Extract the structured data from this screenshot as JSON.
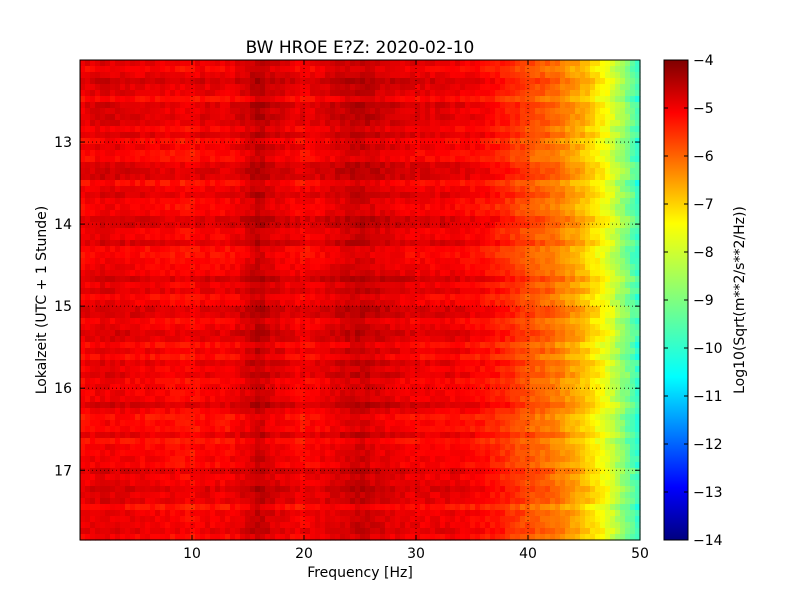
{
  "chart_data": {
    "type": "heatmap",
    "title": "BW HROE E?Z: 2020-02-10",
    "xlabel": "Frequency [Hz]",
    "ylabel": "Lokalzeit (UTC + 1 Stunde)",
    "xlim": [
      0,
      50
    ],
    "ylim": [
      12.0,
      17.85
    ],
    "y_inverted": true,
    "x_ticks": [
      10,
      20,
      30,
      40,
      50
    ],
    "y_ticks": [
      13,
      14,
      15,
      16,
      17
    ],
    "grid": true,
    "colorbar": {
      "label": "Log10(Sqrt(m**2/s**2/Hz))",
      "min": -14,
      "max": -4,
      "ticks": [
        -4,
        -5,
        -6,
        -7,
        -8,
        -9,
        -10,
        -11,
        -12,
        -13,
        -14
      ],
      "tick_labels": [
        "−4",
        "−5",
        "−6",
        "−7",
        "−8",
        "−9",
        "−10",
        "−11",
        "−12",
        "−13",
        "−14"
      ],
      "colormap": "jet"
    },
    "frequency_profile": {
      "x": [
        0,
        2,
        5,
        8,
        10,
        11,
        13,
        15,
        16,
        17,
        20,
        23,
        25,
        27,
        30,
        33,
        36,
        38,
        40,
        42,
        44,
        45,
        46,
        47,
        48,
        49,
        50
      ],
      "values": [
        -5.2,
        -5.0,
        -5.1,
        -5.2,
        -5.3,
        -5.1,
        -5.2,
        -4.9,
        -4.6,
        -4.9,
        -5.2,
        -4.9,
        -4.7,
        -4.9,
        -5.1,
        -5.1,
        -5.3,
        -5.6,
        -6.0,
        -6.3,
        -6.8,
        -7.1,
        -7.5,
        -7.9,
        -8.5,
        -9.1,
        -9.8
      ]
    }
  }
}
